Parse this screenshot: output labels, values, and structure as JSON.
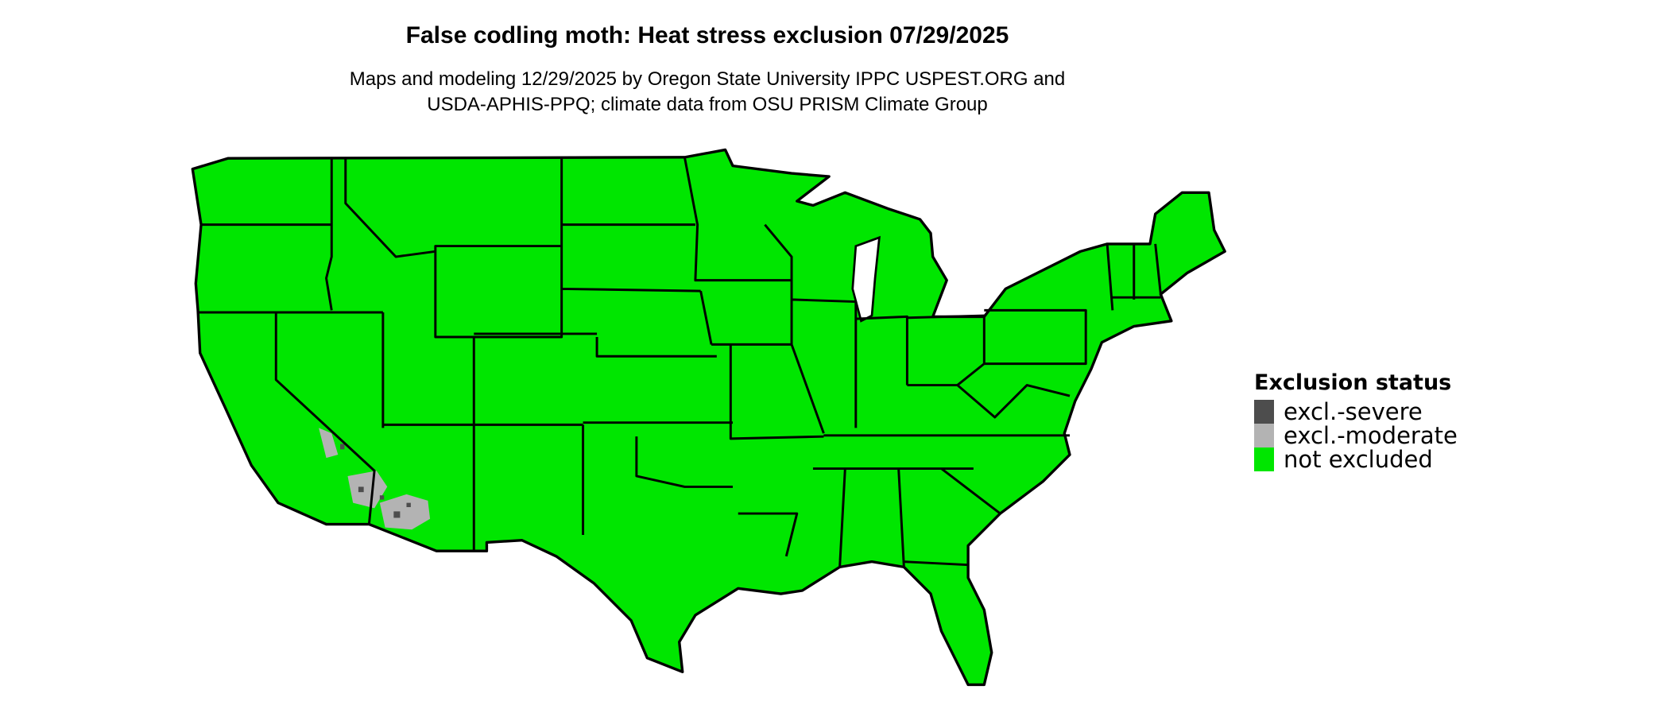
{
  "title": "False codling moth: Heat stress exclusion 07/29/2025",
  "subtitle_lines": [
    "Maps and modeling 12/29/2025 by Oregon State University IPPC USPEST.ORG and",
    "USDA-APHIS-PPQ; climate data from OSU PRISM Climate Group"
  ],
  "legend": {
    "title": "Exclusion status",
    "items": [
      {
        "label": "excl.-severe",
        "color": "#4d4d4d"
      },
      {
        "label": "excl.-moderate",
        "color": "#b3b3b3"
      },
      {
        "label": "not excluded",
        "color": "#00e600"
      }
    ]
  },
  "map": {
    "region": "conterminous United States",
    "base_color": "#00e600",
    "border_color": "#000000",
    "excluded_moderate_areas": [
      "southeastern California",
      "southwestern Arizona"
    ],
    "excluded_severe_areas": [
      "southeastern California (scattered)",
      "southwestern Arizona (scattered)"
    ]
  }
}
